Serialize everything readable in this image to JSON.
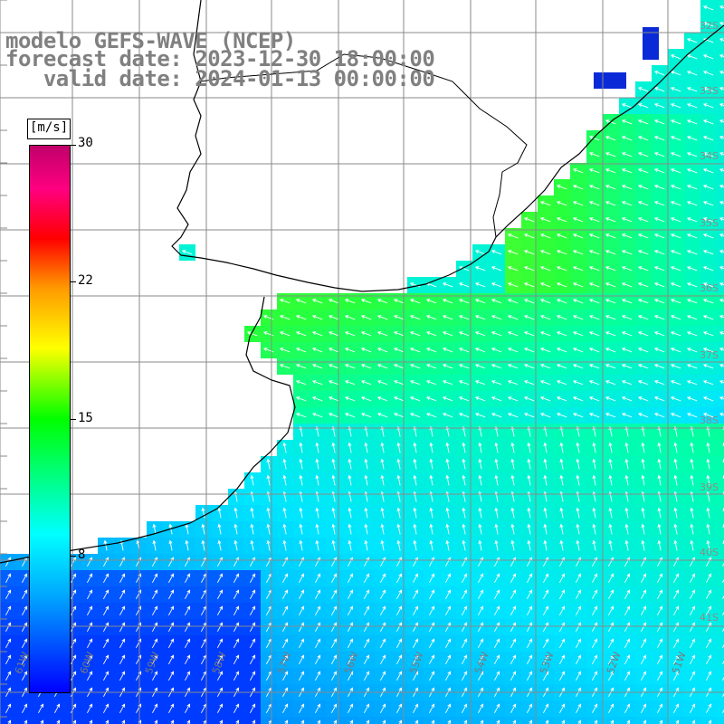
{
  "title": {
    "line1": "modelo GEFS-WAVE (NCEP)",
    "line2": "forecast date: 2023-12-30 18:00:00",
    "line3": "   valid date: 2024-01-13 00:00:00"
  },
  "colorbar": {
    "unit": "[m/s]",
    "ticks": [
      "30",
      "22",
      "15",
      "8"
    ]
  },
  "lat_labels": [
    "32S",
    "33S",
    "34S",
    "35S",
    "36S",
    "37S",
    "38S",
    "39S",
    "40S",
    "41S"
  ],
  "lon_labels": [
    "61W",
    "60W",
    "59W",
    "58W",
    "57W",
    "56W",
    "55W",
    "54W",
    "53W",
    "52W",
    "51W"
  ],
  "colors": {
    "land": "#ffffff",
    "grid": "#8a8a8a",
    "coast": "#000000",
    "arrow": "#ffffff",
    "title": "#808080"
  }
}
